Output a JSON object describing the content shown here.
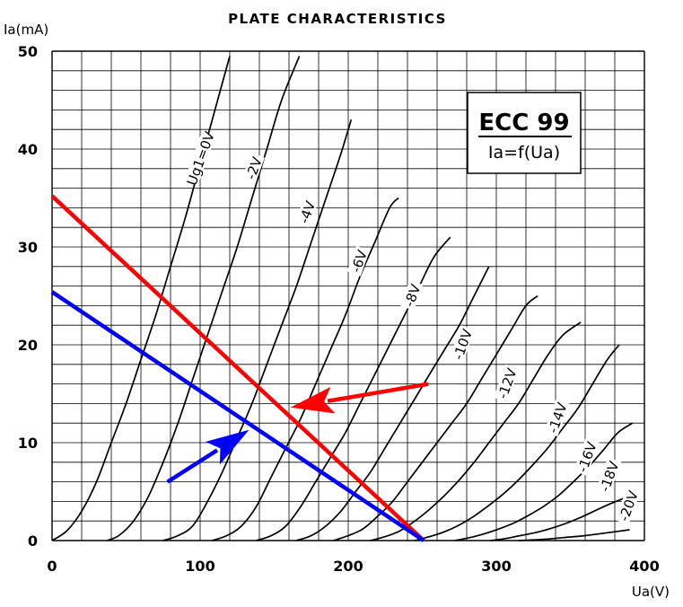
{
  "chart_data": {
    "type": "line",
    "title": "PLATE CHARACTERISTICS",
    "xlabel": "Ua(V)",
    "ylabel": "Ia(mA)",
    "xlim": [
      0,
      400
    ],
    "ylim": [
      0,
      50
    ],
    "x_ticks": [
      "0",
      "100",
      "200",
      "300",
      "400"
    ],
    "y_ticks": [
      "0",
      "10",
      "20",
      "30",
      "40",
      "50"
    ],
    "grid": true,
    "info_box": {
      "title": "ECC 99",
      "subtitle": "Ia=f(Ua)"
    },
    "series": [
      {
        "name": "Ug1=0V",
        "label_at": [
          101,
          39
        ],
        "points": [
          [
            0,
            0
          ],
          [
            10,
            1
          ],
          [
            20,
            3
          ],
          [
            30,
            6
          ],
          [
            40,
            10
          ],
          [
            50,
            14
          ],
          [
            60,
            18.5
          ],
          [
            70,
            23
          ],
          [
            80,
            28
          ],
          [
            90,
            33
          ],
          [
            100,
            38.5
          ],
          [
            110,
            44
          ],
          [
            120,
            49.5
          ]
        ]
      },
      {
        "name": "-2V",
        "label_at": [
          137,
          38
        ],
        "points": [
          [
            37,
            0
          ],
          [
            45,
            0.5
          ],
          [
            55,
            2
          ],
          [
            65,
            4.5
          ],
          [
            75,
            8
          ],
          [
            85,
            12
          ],
          [
            95,
            16.5
          ],
          [
            105,
            21
          ],
          [
            115,
            25.5
          ],
          [
            125,
            30
          ],
          [
            135,
            35
          ],
          [
            145,
            40
          ],
          [
            155,
            45
          ],
          [
            167,
            49.5
          ]
        ]
      },
      {
        "name": "-4V",
        "label_at": [
          173,
          33.5
        ],
        "points": [
          [
            75,
            0
          ],
          [
            85,
            0.5
          ],
          [
            95,
            1.5
          ],
          [
            105,
            4
          ],
          [
            115,
            7
          ],
          [
            125,
            10.5
          ],
          [
            135,
            14
          ],
          [
            145,
            18
          ],
          [
            155,
            22
          ],
          [
            165,
            26
          ],
          [
            175,
            30.5
          ],
          [
            185,
            35
          ],
          [
            195,
            39.5
          ],
          [
            202,
            43
          ]
        ]
      },
      {
        "name": "-6V",
        "label_at": [
          208,
          28.5
        ],
        "points": [
          [
            108,
            0
          ],
          [
            118,
            0.5
          ],
          [
            128,
            1.5
          ],
          [
            138,
            3.5
          ],
          [
            148,
            6.5
          ],
          [
            158,
            9.5
          ],
          [
            168,
            12.5
          ],
          [
            178,
            16
          ],
          [
            188,
            19.5
          ],
          [
            198,
            23
          ],
          [
            208,
            27
          ],
          [
            218,
            30.5
          ],
          [
            228,
            34
          ],
          [
            234,
            35
          ]
        ]
      },
      {
        "name": "-8V",
        "label_at": [
          244,
          25
        ],
        "points": [
          [
            138,
            0
          ],
          [
            148,
            0.5
          ],
          [
            158,
            1.5
          ],
          [
            168,
            3.5
          ],
          [
            178,
            6
          ],
          [
            188,
            8.5
          ],
          [
            198,
            11
          ],
          [
            208,
            14
          ],
          [
            218,
            17
          ],
          [
            228,
            20
          ],
          [
            238,
            23
          ],
          [
            248,
            26
          ],
          [
            258,
            29
          ],
          [
            269,
            31
          ]
        ]
      },
      {
        "name": "-10V",
        "label_at": [
          278,
          20
        ],
        "points": [
          [
            165,
            0
          ],
          [
            175,
            0.5
          ],
          [
            185,
            1.5
          ],
          [
            195,
            3
          ],
          [
            205,
            5
          ],
          [
            215,
            7
          ],
          [
            225,
            9.5
          ],
          [
            235,
            12
          ],
          [
            245,
            14.5
          ],
          [
            255,
            17
          ],
          [
            265,
            19.5
          ],
          [
            275,
            22
          ],
          [
            285,
            25
          ],
          [
            295,
            28
          ]
        ]
      },
      {
        "name": "-12V",
        "label_at": [
          308,
          16
        ],
        "points": [
          [
            190,
            0
          ],
          [
            200,
            0.5
          ],
          [
            210,
            1.2
          ],
          [
            220,
            2.5
          ],
          [
            230,
            4
          ],
          [
            240,
            6
          ],
          [
            250,
            8
          ],
          [
            260,
            10
          ],
          [
            270,
            12
          ],
          [
            280,
            14
          ],
          [
            290,
            16.5
          ],
          [
            300,
            19
          ],
          [
            310,
            21.5
          ],
          [
            320,
            24
          ],
          [
            328,
            25
          ]
        ]
      },
      {
        "name": "-14V",
        "label_at": [
          342,
          12.5
        ],
        "points": [
          [
            215,
            0
          ],
          [
            225,
            0.4
          ],
          [
            235,
            1
          ],
          [
            245,
            2
          ],
          [
            255,
            3.2
          ],
          [
            265,
            4.6
          ],
          [
            275,
            6.2
          ],
          [
            285,
            8
          ],
          [
            295,
            10
          ],
          [
            305,
            12
          ],
          [
            315,
            14
          ],
          [
            325,
            16.5
          ],
          [
            335,
            19
          ],
          [
            345,
            21
          ],
          [
            357,
            22.3
          ]
        ]
      },
      {
        "name": "-16V",
        "label_at": [
          362,
          8.5
        ],
        "points": [
          [
            245,
            0
          ],
          [
            255,
            0.4
          ],
          [
            265,
            0.9
          ],
          [
            275,
            1.6
          ],
          [
            285,
            2.5
          ],
          [
            295,
            3.6
          ],
          [
            305,
            4.8
          ],
          [
            315,
            6.2
          ],
          [
            325,
            7.8
          ],
          [
            335,
            9.5
          ],
          [
            345,
            11.5
          ],
          [
            355,
            13.5
          ],
          [
            365,
            16
          ],
          [
            375,
            18.5
          ],
          [
            383,
            20
          ]
        ]
      },
      {
        "name": "-18V",
        "label_at": [
          377,
          6.5
        ],
        "points": [
          [
            272,
            0
          ],
          [
            282,
            0.3
          ],
          [
            292,
            0.7
          ],
          [
            302,
            1.2
          ],
          [
            312,
            1.8
          ],
          [
            322,
            2.6
          ],
          [
            332,
            3.5
          ],
          [
            342,
            4.6
          ],
          [
            352,
            6
          ],
          [
            362,
            7.5
          ],
          [
            372,
            9.2
          ],
          [
            382,
            11
          ],
          [
            392,
            12
          ]
        ]
      },
      {
        "name": "-20V",
        "label_at": [
          390,
          3.5
        ],
        "points": [
          [
            296,
            0
          ],
          [
            306,
            0.2
          ],
          [
            316,
            0.5
          ],
          [
            326,
            0.8
          ],
          [
            336,
            1.2
          ],
          [
            346,
            1.7
          ],
          [
            356,
            2.3
          ],
          [
            366,
            3
          ],
          [
            376,
            3.7
          ],
          [
            386,
            4.3
          ],
          [
            392,
            4.6
          ]
        ]
      },
      {
        "name": "",
        "points": [
          [
            315,
            0
          ],
          [
            330,
            0.1
          ],
          [
            345,
            0.3
          ],
          [
            360,
            0.5
          ],
          [
            375,
            0.8
          ],
          [
            390,
            1.1
          ]
        ]
      }
    ],
    "load_lines": [
      {
        "color": "#ff0000",
        "points": [
          [
            0,
            35.2
          ],
          [
            251,
            0
          ]
        ]
      },
      {
        "color": "#0000ff",
        "points": [
          [
            0,
            25.4
          ],
          [
            251,
            0
          ]
        ]
      }
    ],
    "arrows": [
      {
        "color": "#ff0000",
        "from": [
          254,
          16
        ],
        "to": [
          161,
          13.6
        ]
      },
      {
        "color": "#0000ff",
        "from": [
          78,
          6
        ],
        "to": [
          133,
          11.3
        ]
      }
    ]
  }
}
